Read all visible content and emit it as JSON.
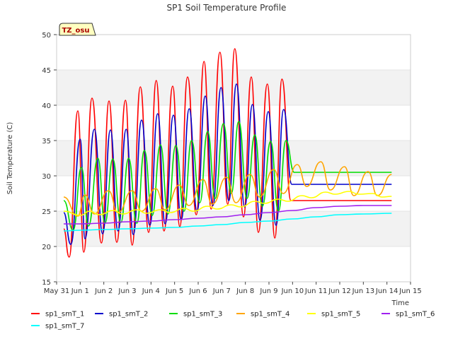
{
  "chart_data": {
    "type": "line",
    "title": "SP1 Soil Temperature Profile",
    "xlabel": "Time",
    "ylabel": "Soil Temperature (C)",
    "badge": "TZ_osu",
    "xlim": [
      0,
      15
    ],
    "ylim": [
      15,
      50
    ],
    "x_ticks": [
      0,
      1,
      2,
      3,
      4,
      5,
      6,
      7,
      8,
      9,
      10,
      11,
      12,
      13,
      14,
      15
    ],
    "x_tick_labels": [
      "May 31",
      "Jun 1",
      "Jun 2",
      "Jun 3",
      "Jun 4",
      "Jun 5",
      "Jun 6",
      "Jun 7",
      "Jun 8",
      "Jun 9",
      "Jun 10",
      "Jun 11",
      "Jun 12",
      "Jun 13",
      "Jun 14",
      "Jun 15"
    ],
    "y_ticks": [
      15,
      20,
      25,
      30,
      35,
      40,
      45,
      50
    ],
    "grid": "horizontal bands",
    "legend_position": "bottom",
    "series": [
      {
        "name": "sp1_smT_1",
        "color": "#ff0000",
        "x": [
          0.3,
          0.53,
          0.9,
          1.15,
          1.5,
          1.9,
          2.22,
          2.55,
          2.92,
          3.2,
          3.55,
          3.9,
          4.22,
          4.55,
          4.92,
          5.22,
          5.55,
          5.92,
          6.25,
          6.55,
          6.92,
          7.25,
          7.55,
          7.92,
          8.25,
          8.55,
          8.93,
          9.25,
          9.55,
          9.93,
          10.25,
          10.55,
          10.93,
          11.25,
          11.55,
          11.93,
          12.25,
          12.55,
          12.92,
          13.25,
          13.55,
          13.9,
          14.2
        ],
        "y": [
          22.5,
          18.5,
          39.2,
          19.2,
          41.0,
          20.5,
          40.6,
          20.6,
          40.7,
          20.2,
          42.6,
          22.0,
          43.5,
          22.2,
          42.7,
          22.8,
          44.0,
          24.5,
          46.2,
          25.3,
          47.5,
          26.0,
          48.0,
          24.2,
          44.0,
          22.0,
          43.0,
          21.2,
          43.7,
          26.5,
          26.5,
          26.5,
          26.5,
          26.5,
          26.5,
          26.5,
          26.5,
          26.5,
          26.5,
          26.5,
          26.5,
          26.5,
          26.5
        ]
      },
      {
        "name": "sp1_smT_2",
        "color": "#0000cc",
        "x": [
          0.3,
          0.6,
          1.0,
          1.2,
          1.6,
          1.95,
          2.28,
          2.6,
          2.95,
          3.25,
          3.6,
          3.95,
          4.28,
          4.6,
          4.95,
          5.28,
          5.62,
          5.95,
          6.3,
          6.62,
          6.97,
          7.3,
          7.62,
          7.97,
          8.3,
          8.62,
          8.97,
          9.3,
          9.62,
          9.97,
          10.3,
          10.6,
          10.97,
          11.3,
          11.62,
          11.97,
          12.3,
          12.62,
          12.95,
          13.28,
          13.6,
          13.95,
          14.2
        ],
        "y": [
          24.8,
          20.3,
          35.2,
          21.1,
          36.6,
          21.8,
          36.5,
          22.2,
          36.6,
          21.7,
          37.9,
          23.0,
          38.8,
          23.2,
          38.6,
          23.8,
          39.5,
          25.0,
          41.3,
          25.8,
          42.5,
          26.5,
          43.0,
          25.6,
          40.1,
          23.7,
          39.1,
          23.0,
          39.4,
          28.8,
          28.8,
          28.8,
          28.8,
          28.8,
          28.8,
          28.8,
          28.8,
          28.8,
          28.8,
          28.8,
          28.8,
          28.8,
          28.8
        ]
      },
      {
        "name": "sp1_smT_3",
        "color": "#00dd00",
        "x": [
          0.3,
          0.7,
          1.05,
          1.35,
          1.75,
          2.05,
          2.38,
          2.72,
          3.05,
          3.4,
          3.72,
          4.05,
          4.4,
          4.72,
          5.05,
          5.4,
          5.72,
          6.07,
          6.4,
          6.72,
          7.07,
          7.4,
          7.72,
          8.07,
          8.4,
          8.72,
          9.07,
          9.4,
          9.72,
          10.07,
          10.4,
          10.72,
          11.07,
          11.4,
          11.72,
          12.07,
          12.4,
          12.72,
          13.07,
          13.4,
          13.72,
          14.07,
          14.2
        ],
        "y": [
          26.5,
          22.3,
          31.2,
          22.9,
          32.5,
          23.3,
          32.4,
          23.4,
          32.5,
          23.3,
          33.6,
          24.4,
          34.4,
          24.6,
          34.3,
          25.0,
          35.0,
          26.2,
          36.3,
          26.8,
          37.4,
          27.5,
          37.7,
          26.8,
          35.8,
          25.7,
          34.9,
          25.0,
          35.0,
          30.5,
          30.5,
          30.5,
          30.5,
          30.5,
          30.5,
          30.5,
          30.5,
          30.5,
          30.5,
          30.5,
          30.5,
          30.5,
          30.5
        ]
      },
      {
        "name": "sp1_smT_4",
        "color": "#ffa500",
        "x": [
          0.3,
          0.9,
          1.2,
          1.6,
          2.2,
          2.6,
          3.2,
          3.6,
          4.2,
          4.6,
          5.2,
          5.6,
          6.2,
          6.6,
          7.2,
          7.6,
          8.2,
          8.6,
          9.2,
          9.6,
          10.2,
          10.6,
          11.2,
          11.6,
          12.2,
          12.6,
          13.2,
          13.6,
          14.2
        ],
        "y": [
          27.0,
          24.3,
          27.3,
          24.6,
          27.9,
          24.8,
          27.9,
          25.0,
          28.2,
          25.2,
          28.7,
          25.8,
          29.5,
          26.0,
          29.8,
          26.2,
          30.2,
          27.0,
          30.9,
          27.5,
          31.6,
          28.5,
          32.0,
          28.0,
          31.3,
          27.2,
          30.6,
          27.2,
          30.2
        ]
      },
      {
        "name": "sp1_smT_5",
        "color": "#ffff00",
        "x": [
          0.3,
          1.0,
          1.4,
          1.8,
          2.4,
          2.8,
          3.4,
          3.8,
          4.4,
          4.8,
          5.4,
          5.8,
          6.4,
          6.8,
          7.4,
          7.8,
          8.4,
          8.8,
          9.4,
          9.8,
          10.4,
          10.8,
          11.4,
          11.8,
          12.4,
          12.8,
          13.4,
          13.8,
          14.2
        ],
        "y": [
          25.0,
          24.4,
          25.0,
          24.5,
          25.1,
          24.6,
          25.2,
          24.7,
          25.2,
          24.8,
          25.4,
          25.0,
          25.7,
          25.3,
          25.9,
          25.6,
          26.4,
          26.1,
          26.7,
          26.4,
          27.2,
          26.9,
          27.7,
          27.4,
          27.8,
          27.4,
          27.5,
          27.0,
          27.1
        ]
      },
      {
        "name": "sp1_smT_6",
        "color": "#a020f0",
        "x": [
          0.3,
          1.0,
          2.0,
          3.0,
          4.0,
          5.0,
          6.0,
          7.0,
          8.0,
          9.0,
          10.0,
          11.0,
          12.0,
          13.0,
          14.2
        ],
        "y": [
          23.2,
          23.2,
          23.3,
          23.5,
          23.6,
          23.8,
          24.0,
          24.2,
          24.5,
          24.8,
          25.1,
          25.5,
          25.7,
          25.8,
          25.8
        ]
      },
      {
        "name": "sp1_smT_7",
        "color": "#00ffff",
        "x": [
          0.3,
          1.0,
          2.0,
          3.0,
          4.0,
          5.0,
          6.0,
          7.0,
          8.0,
          9.0,
          10.0,
          11.0,
          12.0,
          13.0,
          14.2
        ],
        "y": [
          22.2,
          22.3,
          22.4,
          22.5,
          22.6,
          22.7,
          22.9,
          23.1,
          23.4,
          23.6,
          23.9,
          24.2,
          24.5,
          24.6,
          24.7
        ]
      }
    ]
  }
}
